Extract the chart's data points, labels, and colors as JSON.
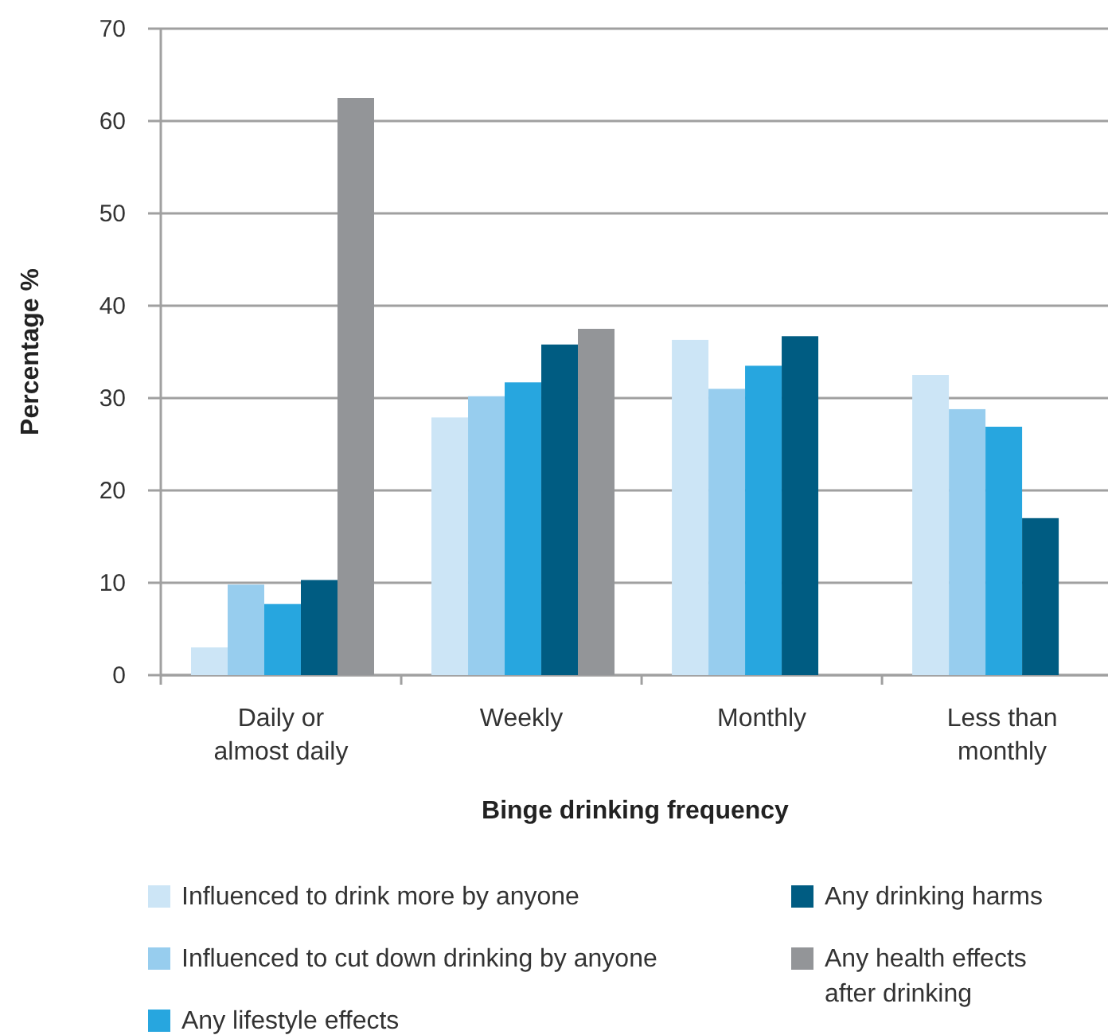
{
  "chart_data": {
    "type": "bar",
    "xlabel": "Binge drinking frequency",
    "ylabel": "Percentage %",
    "categories": [
      "Daily or almost daily",
      "Weekly",
      "Monthly",
      "Less than monthly"
    ],
    "series": [
      {
        "name": "Influenced to drink more by anyone",
        "color": "#cce5f6",
        "values": [
          3,
          27.9,
          36.3,
          32.5
        ]
      },
      {
        "name": "Influenced to cut down drinking by anyone",
        "color": "#97cdee",
        "values": [
          9.8,
          30.2,
          31,
          28.8
        ]
      },
      {
        "name": "Any lifestyle effects",
        "color": "#27a6df",
        "values": [
          7.7,
          31.7,
          33.5,
          26.9
        ]
      },
      {
        "name": "Any drinking harms",
        "color": "#005c82",
        "values": [
          10.3,
          35.8,
          36.7,
          17
        ]
      },
      {
        "name": "Any health effects after drinking",
        "color": "#939598",
        "values": [
          62.5,
          37.5,
          null,
          null
        ]
      }
    ],
    "ylim": [
      0,
      70
    ],
    "yticks": [
      0,
      10,
      20,
      30,
      40,
      50,
      60,
      70
    ],
    "grid": "y",
    "legend": "bottom"
  }
}
